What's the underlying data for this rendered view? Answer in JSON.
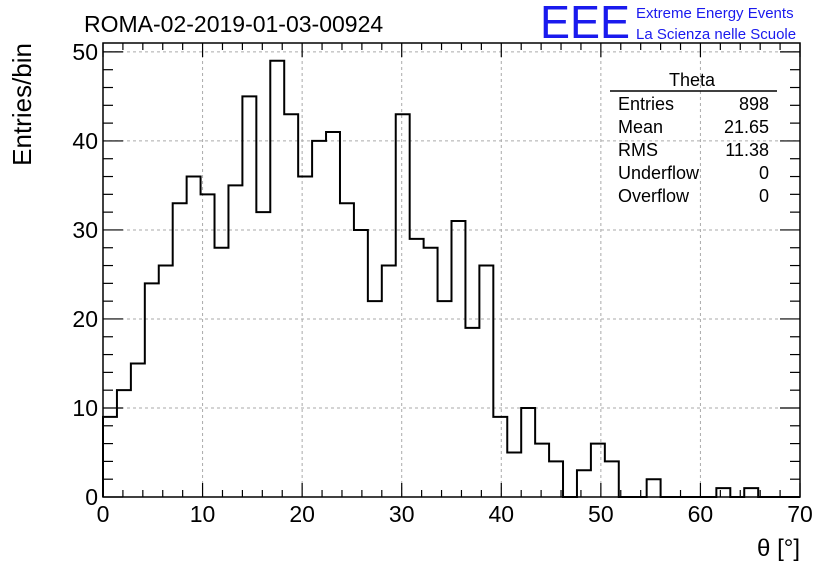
{
  "header": {
    "run_title": "ROMA-02-2019-01-03-00924",
    "logo_text": "EEE",
    "logo_line1": "Extreme Energy Events",
    "logo_line2": "La Scienza nelle Scuole",
    "logo_color": "#1a1aee"
  },
  "stats_box": {
    "title": "Theta",
    "rows": [
      {
        "label": "Entries",
        "value": "898"
      },
      {
        "label": "Mean",
        "value": "21.65"
      },
      {
        "label": "RMS",
        "value": "11.38"
      },
      {
        "label": "Underflow",
        "value": "0"
      },
      {
        "label": "Overflow",
        "value": "0"
      }
    ]
  },
  "chart_data": {
    "type": "histogram",
    "xlabel": "θ [°]",
    "ylabel": "Entries/bin",
    "xlim": [
      0,
      70
    ],
    "ylim": [
      0,
      51
    ],
    "grid": true,
    "x_ticks": [
      0,
      10,
      20,
      30,
      40,
      50,
      60,
      70
    ],
    "y_ticks": [
      0,
      10,
      20,
      30,
      40,
      50
    ],
    "bin_width": 1.4,
    "bin_start": 0,
    "values": [
      9,
      12,
      15,
      24,
      26,
      33,
      36,
      34,
      28,
      35,
      45,
      32,
      49,
      43,
      36,
      40,
      41,
      33,
      30,
      22,
      26,
      43,
      29,
      28,
      22,
      31,
      19,
      26,
      9,
      5,
      10,
      6,
      4,
      0,
      3,
      6,
      4,
      0,
      0,
      2,
      0,
      0,
      0,
      0,
      1,
      0,
      1,
      0,
      0,
      0
    ]
  }
}
